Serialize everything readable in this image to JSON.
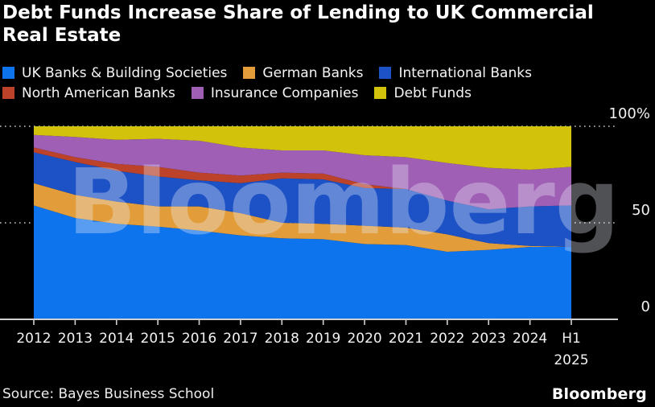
{
  "title": "Debt Funds Increase Share of Lending to UK Commercial Real Estate",
  "watermark": "Bloomberg",
  "source": "Source: Bayes Business School",
  "brand": "Bloomberg",
  "colors": {
    "background": "#000000",
    "text": "#f5f5f5",
    "axis": "#d0d0d0",
    "gridline": "#c8c8c8"
  },
  "chart_data": {
    "type": "area",
    "stacked": true,
    "unit": "percent share",
    "title": "Debt Funds Increase Share of Lending to UK Commercial Real Estate",
    "xlabel": "",
    "ylabel": "",
    "ylim": [
      0,
      100
    ],
    "grid": "dotted horizontal lines at 50 and 100, solid baseline at 0",
    "legend_position": "top",
    "y_ticks": [
      {
        "label": "100%",
        "value": 100
      },
      {
        "label": "50",
        "value": 50
      },
      {
        "label": "0",
        "value": 0
      }
    ],
    "categories": [
      "2012",
      "2013",
      "2014",
      "2015",
      "2016",
      "2017",
      "2018",
      "2019",
      "2020",
      "2021",
      "2022",
      "2023",
      "2024",
      "H1 2025"
    ],
    "series": [
      {
        "name": "UK Banks & Building Societies",
        "color": "#0d74ee",
        "legend_row": 1,
        "values": [
          59,
          52.5,
          49.5,
          48,
          46,
          43.5,
          42,
          41.5,
          39,
          38.5,
          35,
          36,
          37.5,
          37.5
        ]
      },
      {
        "name": "German Banks",
        "color": "#e29d3a",
        "legend_row": 1,
        "values": [
          11.5,
          12,
          11.5,
          10.5,
          12.5,
          11.5,
          8,
          8,
          9.5,
          9,
          9,
          3.5,
          0.5,
          0
        ]
      },
      {
        "name": "International Banks",
        "color": "#1c52c6",
        "legend_row": 1,
        "values": [
          16,
          17,
          16,
          15.5,
          13.5,
          15.5,
          23,
          23,
          19.5,
          20,
          17.5,
          17.5,
          20.5,
          21.5
        ]
      },
      {
        "name": "North American Banks",
        "color": "#bc4229",
        "legend_row": 2,
        "values": [
          2.5,
          2.5,
          3.5,
          5,
          4,
          4,
          3,
          3,
          2,
          0,
          0,
          0,
          0,
          0
        ]
      },
      {
        "name": "Insurance Companies",
        "color": "#9f5fb5",
        "legend_row": 2,
        "values": [
          6.5,
          10.5,
          12.5,
          14.5,
          16.5,
          14.5,
          11.5,
          12,
          15,
          16.5,
          19.5,
          21.5,
          19,
          20
        ]
      },
      {
        "name": "Debt Funds",
        "color": "#d2c20c",
        "legend_row": 2,
        "values": [
          4.5,
          5.5,
          7,
          6.5,
          7.5,
          11,
          12.5,
          12.5,
          15,
          16,
          19,
          21.5,
          22.5,
          21
        ]
      }
    ]
  }
}
